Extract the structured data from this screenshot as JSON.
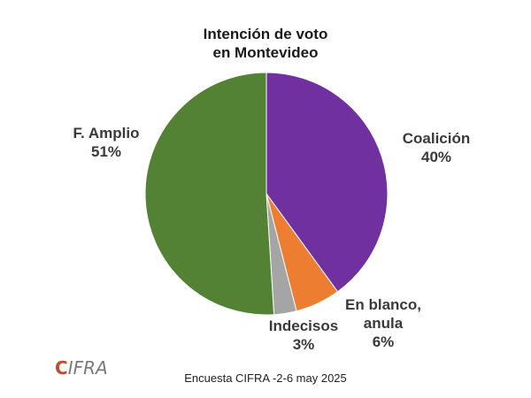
{
  "chart_data": {
    "type": "pie",
    "title_lines": [
      "Intención de voto",
      "en Montevideo"
    ],
    "slices": [
      {
        "name_lines": [
          "Coalición"
        ],
        "label": "40%",
        "value": 40,
        "color": "#7030a0"
      },
      {
        "name_lines": [
          "En blanco,",
          "anula"
        ],
        "label": "6%",
        "value": 6,
        "color": "#ed7d31"
      },
      {
        "name_lines": [
          "Indecisos"
        ],
        "label": "3%",
        "value": 3,
        "color": "#a5a5a5"
      },
      {
        "name_lines": [
          "F. Amplio"
        ],
        "label": "51%",
        "value": 51,
        "color": "#548235"
      }
    ],
    "start": "12 o'clock",
    "direction": "clockwise"
  },
  "logo_text": "IFRA",
  "logo_mark": "C",
  "source": "Encuesta CIFRA -2-6 may 2025"
}
